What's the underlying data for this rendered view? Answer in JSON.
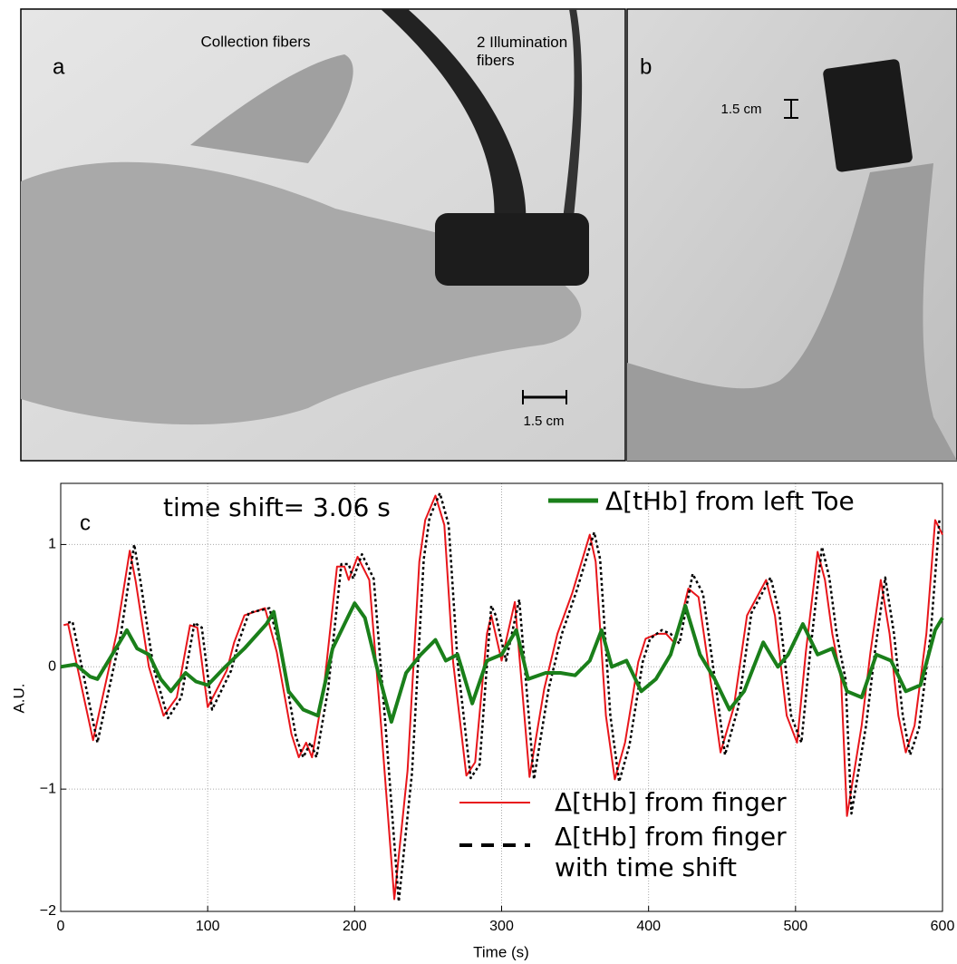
{
  "figure": {
    "panels": [
      {
        "label": "a",
        "annotations": [
          "Collection fibers",
          "2 Illumination fibers"
        ],
        "scale_bar": "1.5 cm"
      },
      {
        "label": "b",
        "scale_bar": "1.5 cm"
      }
    ]
  },
  "chart_data": {
    "type": "line",
    "panel_label": "c",
    "annotation": "time shift= 3.06 s",
    "xlabel": "Time (s)",
    "ylabel": "A.U.",
    "xlim": [
      0,
      600
    ],
    "ylim": [
      -2,
      1.5
    ],
    "xticks": [
      0,
      100,
      200,
      300,
      400,
      500,
      600
    ],
    "yticks": [
      {
        "value": -2,
        "label": "−2"
      },
      {
        "value": -1,
        "label": "−1"
      },
      0,
      1
    ],
    "grid": true,
    "series": [
      {
        "name": "Δ[tHb] from left Toe",
        "color": "#1a7f1a",
        "linestyle": "solid",
        "x": [
          0,
          10,
          20,
          25,
          35,
          45,
          52,
          60,
          68,
          75,
          85,
          92,
          100,
          112,
          125,
          140,
          145,
          155,
          165,
          175,
          185,
          200,
          207,
          215,
          225,
          235,
          245,
          255,
          262,
          270,
          280,
          290,
          300,
          310,
          318,
          330,
          340,
          350,
          360,
          368,
          375,
          385,
          395,
          405,
          415,
          425,
          435,
          445,
          455,
          465,
          478,
          488,
          495,
          505,
          515,
          525,
          535,
          545,
          555,
          565,
          575,
          585,
          595,
          600
        ],
        "values": [
          0,
          0.02,
          -0.08,
          -0.1,
          0.1,
          0.3,
          0.15,
          0.1,
          -0.1,
          -0.2,
          -0.05,
          -0.12,
          -0.15,
          0,
          0.15,
          0.35,
          0.45,
          -0.2,
          -0.35,
          -0.4,
          0.15,
          0.52,
          0.4,
          0,
          -0.45,
          -0.05,
          0.1,
          0.22,
          0.05,
          0.1,
          -0.3,
          0.05,
          0.1,
          0.3,
          -0.1,
          -0.05,
          -0.05,
          -0.07,
          0.05,
          0.3,
          0,
          0.05,
          -0.2,
          -0.1,
          0.1,
          0.5,
          0.1,
          -0.1,
          -0.35,
          -0.2,
          0.2,
          0,
          0.1,
          0.35,
          0.1,
          0.15,
          -0.2,
          -0.25,
          0.1,
          0.05,
          -0.2,
          -0.15,
          0.3,
          0.4
        ]
      },
      {
        "name": "Δ[tHb] from finger",
        "color": "#e8161b",
        "linestyle": "solid",
        "x": [
          2,
          5,
          22,
          38,
          47,
          51,
          60,
          70,
          79,
          88,
          93,
          100,
          113,
          118,
          125,
          139,
          147,
          157,
          162,
          167,
          171,
          179,
          188,
          193,
          196,
          202,
          210,
          218,
          227,
          236,
          244,
          248,
          255,
          261,
          267,
          276,
          282,
          290,
          293,
          300,
          309,
          319,
          329,
          338,
          348,
          360,
          364,
          371,
          377,
          384,
          393,
          398,
          406,
          412,
          418,
          427,
          434,
          443,
          449,
          458,
          467,
          480,
          486,
          494,
          501,
          507,
          515,
          520,
          525,
          531,
          535,
          545,
          551,
          558,
          564,
          570,
          575,
          581,
          589,
          595,
          600
        ],
        "values": [
          0.34,
          0.35,
          -0.6,
          0.27,
          0.95,
          0.7,
          0,
          -0.4,
          -0.25,
          0.34,
          0.32,
          -0.33,
          -0.03,
          0.2,
          0.42,
          0.48,
          0.12,
          -0.55,
          -0.74,
          -0.62,
          -0.74,
          -0.18,
          0.82,
          0.82,
          0.71,
          0.9,
          0.71,
          -0.48,
          -1.9,
          -0.85,
          0.86,
          1.2,
          1.4,
          1.16,
          0.04,
          -0.89,
          -0.78,
          0.27,
          0.42,
          0.05,
          0.53,
          -0.9,
          -0.18,
          0.27,
          0.6,
          1.08,
          0.86,
          -0.4,
          -0.92,
          -0.62,
          0.04,
          0.23,
          0.27,
          0.27,
          0.19,
          0.64,
          0.57,
          -0.18,
          -0.7,
          -0.33,
          0.42,
          0.71,
          0.42,
          -0.4,
          -0.62,
          0.12,
          0.94,
          0.71,
          0.27,
          -0.1,
          -1.22,
          -0.48,
          0.12,
          0.71,
          0.27,
          -0.4,
          -0.7,
          -0.48,
          0.27,
          1.2,
          1.08
        ]
      },
      {
        "name": "Δ[tHb] from finger with time shift",
        "color": "#000000",
        "linestyle": "dashed",
        "x": [
          5,
          8,
          25,
          41,
          50,
          54,
          63,
          73,
          82,
          91,
          96,
          103,
          116,
          121,
          128,
          142,
          150,
          160,
          165,
          170,
          174,
          182,
          191,
          196,
          199,
          205,
          213,
          221,
          230,
          239,
          247,
          251,
          258,
          264,
          270,
          279,
          285,
          293,
          296,
          303,
          312,
          322,
          332,
          341,
          351,
          363,
          367,
          374,
          380,
          387,
          396,
          401,
          409,
          415,
          421,
          430,
          437,
          446,
          452,
          461,
          470,
          483,
          489,
          497,
          504,
          510,
          518,
          523,
          528,
          534,
          538,
          548,
          554,
          561,
          567,
          573,
          578,
          584,
          592,
          598
        ],
        "values": [
          0.36,
          0.37,
          -0.62,
          0.27,
          1.0,
          0.72,
          0,
          -0.42,
          -0.25,
          0.36,
          0.32,
          -0.35,
          -0.03,
          0.2,
          0.44,
          0.48,
          0.12,
          -0.57,
          -0.74,
          -0.62,
          -0.74,
          -0.18,
          0.84,
          0.84,
          0.72,
          0.92,
          0.72,
          -0.48,
          -1.92,
          -0.87,
          0.88,
          1.22,
          1.42,
          1.16,
          0.04,
          -0.91,
          -0.8,
          0.5,
          0.42,
          0.05,
          0.55,
          -0.92,
          -0.18,
          0.27,
          0.62,
          1.1,
          0.88,
          -0.4,
          -0.94,
          -0.64,
          0.04,
          0.23,
          0.3,
          0.27,
          0.19,
          0.76,
          0.6,
          -0.18,
          -0.72,
          -0.33,
          0.44,
          0.73,
          0.44,
          -0.4,
          -0.62,
          0.12,
          0.98,
          0.73,
          0.27,
          -0.1,
          -1.2,
          -0.48,
          0.12,
          0.73,
          0.27,
          -0.4,
          -0.72,
          -0.5,
          0.27,
          1.22
        ]
      }
    ]
  }
}
